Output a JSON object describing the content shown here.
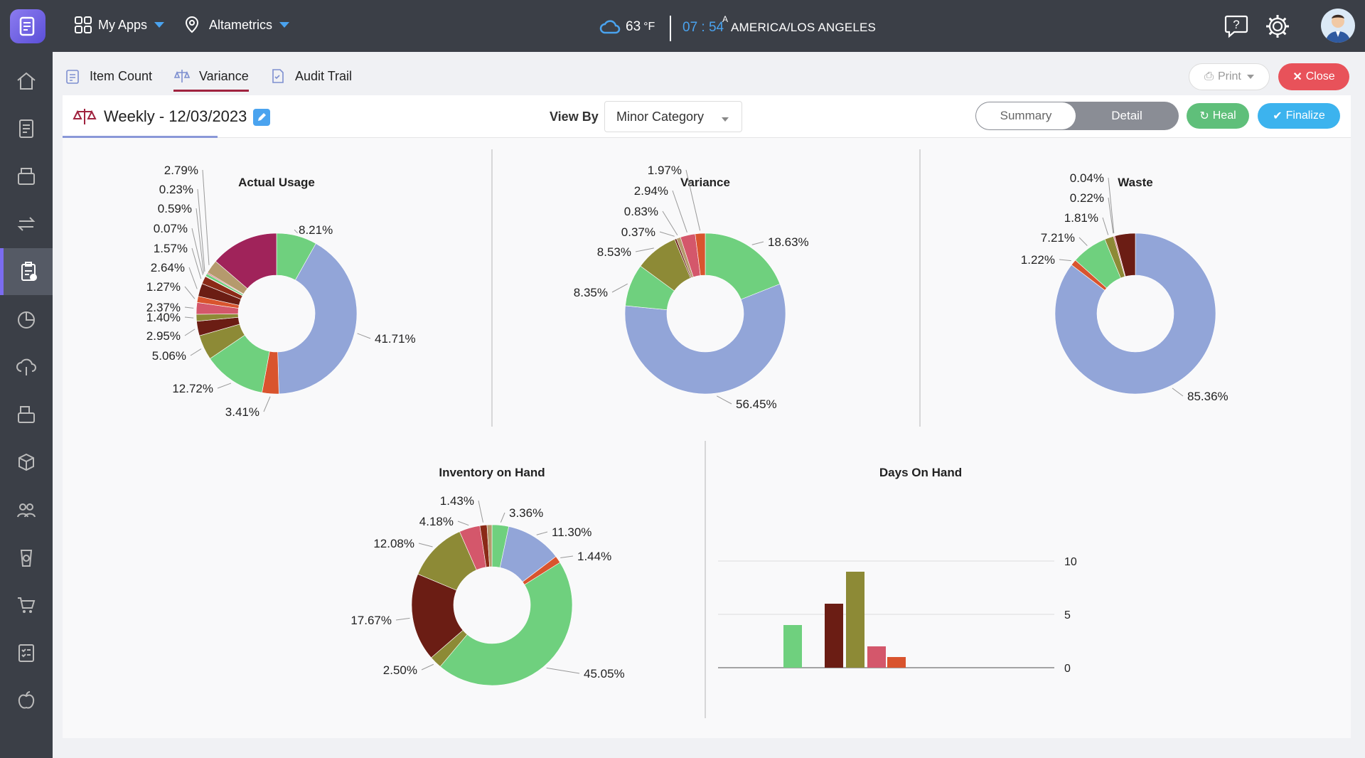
{
  "topbar": {
    "apps_label": "My Apps",
    "org_label": "Altametrics",
    "temperature": "63",
    "temp_unit": "°F",
    "time_hours": "07",
    "time_minutes": "54",
    "time_suffix": "A",
    "timezone": "AMERICA/LOS ANGELES",
    "icons": [
      "help-icon",
      "gear-icon",
      "avatar"
    ]
  },
  "sidebar": {
    "items": [
      {
        "icon": "home-icon"
      },
      {
        "icon": "report-icon"
      },
      {
        "icon": "register-icon"
      },
      {
        "icon": "transfer-icon"
      },
      {
        "icon": "inventory-icon",
        "active": true
      },
      {
        "icon": "pie-chart-icon"
      },
      {
        "icon": "cloud-dollar-icon"
      },
      {
        "icon": "pos-icon"
      },
      {
        "icon": "boxes-icon"
      },
      {
        "icon": "people-icon"
      },
      {
        "icon": "coffee-icon"
      },
      {
        "icon": "cart-icon"
      },
      {
        "icon": "checklist-icon"
      },
      {
        "icon": "apple-icon"
      }
    ]
  },
  "tabs": [
    {
      "label": "Item Count",
      "icon": "clipboard-icon"
    },
    {
      "label": "Variance",
      "icon": "scale-icon",
      "active": true
    },
    {
      "label": "Audit Trail",
      "icon": "audit-icon"
    }
  ],
  "actions": {
    "print_label": "Print",
    "close_label": "Close"
  },
  "subheader": {
    "title": "Weekly - 12/03/2023",
    "view_by_label": "View By",
    "view_by_value": "Minor Category",
    "summary_label": "Summary",
    "detail_label": "Detail",
    "heal_label": "Heal",
    "finalize_label": "Finalize"
  },
  "colors": {
    "blue": "#92a5d8",
    "green": "#6fd07e",
    "orange": "#d9542e",
    "olive": "#8d8a36",
    "maroon": "#6b1d14",
    "magenta": "#a0235a",
    "pink": "#d4576b",
    "tan": "#b59a6d",
    "darkred": "#8b2a17"
  },
  "chart_data": [
    {
      "type": "pie",
      "title": "Actual Usage",
      "slices": [
        {
          "label": "8.21%",
          "value": 8.21,
          "color": "#6fd07e"
        },
        {
          "label": "41.71%",
          "value": 41.71,
          "color": "#92a5d8"
        },
        {
          "label": "3.41%",
          "value": 3.41,
          "color": "#d9542e"
        },
        {
          "label": "12.72%",
          "value": 12.72,
          "color": "#6fd07e"
        },
        {
          "label": "5.06%",
          "value": 5.06,
          "color": "#8d8a36"
        },
        {
          "label": "2.95%",
          "value": 2.95,
          "color": "#6b1d14"
        },
        {
          "label": "1.40%",
          "value": 1.4,
          "color": "#8d8a36"
        },
        {
          "label": "2.37%",
          "value": 2.37,
          "color": "#d4576b"
        },
        {
          "label": "1.27%",
          "value": 1.27,
          "color": "#d9542e"
        },
        {
          "label": "2.64%",
          "value": 2.64,
          "color": "#6b1d14"
        },
        {
          "label": "1.57%",
          "value": 1.57,
          "color": "#8b2a17"
        },
        {
          "label": "0.07%",
          "value": 0.07,
          "color": "#8d8a36"
        },
        {
          "label": "0.59%",
          "value": 0.59,
          "color": "#6fd07e"
        },
        {
          "label": "0.23%",
          "value": 0.23,
          "color": "#d4576b"
        },
        {
          "label": "2.79%",
          "value": 2.79,
          "color": "#b59a6d"
        },
        {
          "label": "",
          "value": 13.81,
          "color": "#a0235a"
        }
      ]
    },
    {
      "type": "pie",
      "title": "Variance",
      "slices": [
        {
          "label": "18.63%",
          "value": 18.63,
          "color": "#6fd07e"
        },
        {
          "label": "56.45%",
          "value": 56.45,
          "color": "#92a5d8"
        },
        {
          "label": "8.35%",
          "value": 8.35,
          "color": "#6fd07e"
        },
        {
          "label": "8.53%",
          "value": 8.53,
          "color": "#8d8a36"
        },
        {
          "label": "0.37%",
          "value": 0.37,
          "color": "#6b1d14"
        },
        {
          "label": "0.83%",
          "value": 0.83,
          "color": "#b59a6d"
        },
        {
          "label": "2.94%",
          "value": 2.94,
          "color": "#d4576b"
        },
        {
          "label": "1.97%",
          "value": 1.97,
          "color": "#d9542e"
        }
      ]
    },
    {
      "type": "pie",
      "title": "Waste",
      "slices": [
        {
          "label": "85.36%",
          "value": 85.36,
          "color": "#92a5d8"
        },
        {
          "label": "1.22%",
          "value": 1.22,
          "color": "#d9542e"
        },
        {
          "label": "7.21%",
          "value": 7.21,
          "color": "#6fd07e"
        },
        {
          "label": "1.81%",
          "value": 1.81,
          "color": "#8d8a36"
        },
        {
          "label": "0.22%",
          "value": 0.22,
          "color": "#d4576b"
        },
        {
          "label": "0.04%",
          "value": 0.04,
          "color": "#b59a6d"
        },
        {
          "label": "",
          "value": 4.14,
          "color": "#6b1d14"
        }
      ]
    },
    {
      "type": "pie",
      "title": "Inventory on Hand",
      "slices": [
        {
          "label": "3.36%",
          "value": 3.36,
          "color": "#6fd07e"
        },
        {
          "label": "11.30%",
          "value": 11.3,
          "color": "#92a5d8"
        },
        {
          "label": "1.44%",
          "value": 1.44,
          "color": "#d9542e"
        },
        {
          "label": "45.05%",
          "value": 45.05,
          "color": "#6fd07e"
        },
        {
          "label": "2.50%",
          "value": 2.5,
          "color": "#8d8a36"
        },
        {
          "label": "17.67%",
          "value": 17.67,
          "color": "#6b1d14"
        },
        {
          "label": "12.08%",
          "value": 12.08,
          "color": "#8d8a36"
        },
        {
          "label": "4.18%",
          "value": 4.18,
          "color": "#d4576b"
        },
        {
          "label": "1.43%",
          "value": 1.43,
          "color": "#8b2a17"
        },
        {
          "label": "",
          "value": 0.99,
          "color": "#b59a6d"
        }
      ]
    },
    {
      "type": "bar",
      "title": "Days On Hand",
      "values": [
        4,
        6,
        9,
        2,
        1
      ],
      "colors": [
        "#6fd07e",
        "#6b1d14",
        "#8d8a36",
        "#d4576b",
        "#d9542e"
      ],
      "ylim": [
        0,
        10
      ],
      "yticks": [
        0,
        5,
        10
      ],
      "grid": true
    }
  ]
}
